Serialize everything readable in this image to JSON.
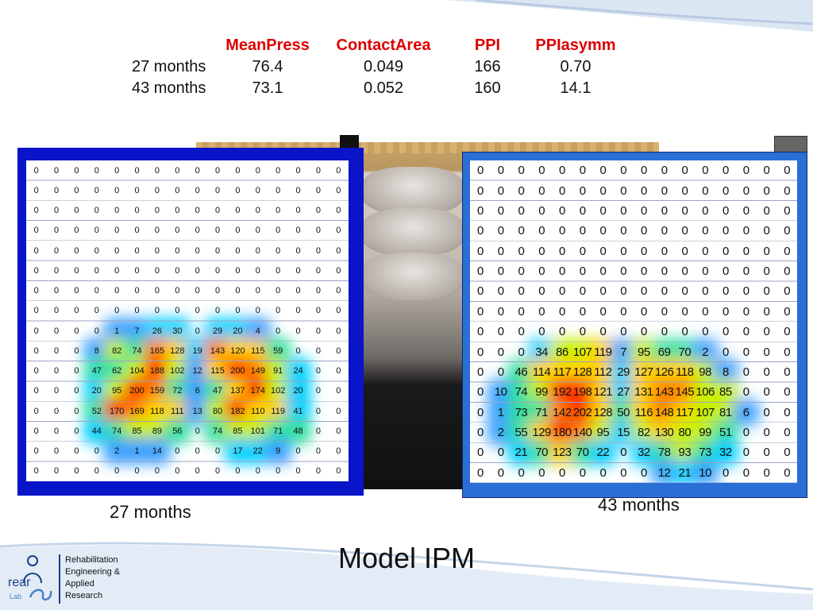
{
  "stats": {
    "headers": [
      "",
      "MeanPress",
      "ContactArea",
      "PPI",
      "PPIasymm"
    ],
    "rows": [
      [
        "27 months",
        "76.4",
        "0.049",
        "166",
        "0.70"
      ],
      [
        "43 months",
        "73.1",
        "0.052",
        "160",
        "14.1"
      ]
    ]
  },
  "maps": {
    "left": {
      "caption": "27 months",
      "rows": [
        [
          "0",
          "0",
          "0",
          "0",
          "0",
          "0",
          "0",
          "0",
          "0",
          "0",
          "0",
          "0",
          "0",
          "0",
          "0",
          "0"
        ],
        [
          "0",
          "0",
          "0",
          "0",
          "0",
          "0",
          "0",
          "0",
          "0",
          "0",
          "0",
          "0",
          "0",
          "0",
          "0",
          "0"
        ],
        [
          "0",
          "0",
          "0",
          "0",
          "0",
          "0",
          "0",
          "0",
          "0",
          "0",
          "0",
          "0",
          "0",
          "0",
          "0",
          "0"
        ],
        [
          "0",
          "0",
          "0",
          "0",
          "0",
          "0",
          "0",
          "0",
          "0",
          "0",
          "0",
          "0",
          "0",
          "0",
          "0",
          "0"
        ],
        [
          "0",
          "0",
          "0",
          "0",
          "0",
          "0",
          "0",
          "0",
          "0",
          "0",
          "0",
          "0",
          "0",
          "0",
          "0",
          "0"
        ],
        [
          "0",
          "0",
          "0",
          "0",
          "0",
          "0",
          "0",
          "0",
          "0",
          "0",
          "0",
          "0",
          "0",
          "0",
          "0",
          "0"
        ],
        [
          "0",
          "0",
          "0",
          "0",
          "0",
          "0",
          "0",
          "0",
          "0",
          "0",
          "0",
          "0",
          "0",
          "0",
          "0",
          "0"
        ],
        [
          "0",
          "0",
          "0",
          "0",
          "0",
          "0",
          "0",
          "0",
          "0",
          "0",
          "0",
          "0",
          "0",
          "0",
          "0",
          "0"
        ],
        [
          "0",
          "0",
          "0",
          "0",
          "1",
          "7",
          "26",
          "30",
          "0",
          "29",
          "20",
          "4",
          "0",
          "0",
          "0",
          "0"
        ],
        [
          "0",
          "0",
          "0",
          "8",
          "82",
          "74",
          "165",
          "128",
          "19",
          "143",
          "120",
          "115",
          "59",
          "0",
          "0",
          "0"
        ],
        [
          "0",
          "0",
          "0",
          "47",
          "62",
          "104",
          "188",
          "102",
          "12",
          "115",
          "200",
          "149",
          "91",
          "24",
          "0",
          "0"
        ],
        [
          "0",
          "0",
          "0",
          "20",
          "95",
          "200",
          "159",
          "72",
          "6",
          "47",
          "137",
          "174",
          "102",
          "20",
          "0",
          "0"
        ],
        [
          "0",
          "0",
          "0",
          "52",
          "170",
          "169",
          "118",
          "111",
          "13",
          "80",
          "182",
          "110",
          "119",
          "41",
          "0",
          "0"
        ],
        [
          "0",
          "0",
          "0",
          "44",
          "74",
          "85",
          "89",
          "56",
          "0",
          "74",
          "85",
          "101",
          "71",
          "48",
          "0",
          "0"
        ],
        [
          "0",
          "0",
          "0",
          "0",
          "2",
          "1",
          "14",
          "0",
          "0",
          "0",
          "17",
          "22",
          "9",
          "0",
          "0",
          "0"
        ],
        [
          "0",
          "0",
          "0",
          "0",
          "0",
          "0",
          "0",
          "0",
          "0",
          "0",
          "0",
          "0",
          "0",
          "0",
          "0",
          "0"
        ]
      ]
    },
    "right": {
      "caption": "43 months",
      "rows": [
        [
          "0",
          "0",
          "0",
          "0",
          "0",
          "0",
          "0",
          "0",
          "0",
          "0",
          "0",
          "0",
          "0",
          "0",
          "0",
          "0"
        ],
        [
          "0",
          "0",
          "0",
          "0",
          "0",
          "0",
          "0",
          "0",
          "0",
          "0",
          "0",
          "0",
          "0",
          "0",
          "0",
          "0"
        ],
        [
          "0",
          "0",
          "0",
          "0",
          "0",
          "0",
          "0",
          "0",
          "0",
          "0",
          "0",
          "0",
          "0",
          "0",
          "0",
          "0"
        ],
        [
          "0",
          "0",
          "0",
          "0",
          "0",
          "0",
          "0",
          "0",
          "0",
          "0",
          "0",
          "0",
          "0",
          "0",
          "0",
          "0"
        ],
        [
          "0",
          "0",
          "0",
          "0",
          "0",
          "0",
          "0",
          "0",
          "0",
          "0",
          "0",
          "0",
          "0",
          "0",
          "0",
          "0"
        ],
        [
          "0",
          "0",
          "0",
          "0",
          "0",
          "0",
          "0",
          "0",
          "0",
          "0",
          "0",
          "0",
          "0",
          "0",
          "0",
          "0"
        ],
        [
          "0",
          "0",
          "0",
          "0",
          "0",
          "0",
          "0",
          "0",
          "0",
          "0",
          "0",
          "0",
          "0",
          "0",
          "0",
          "0"
        ],
        [
          "0",
          "0",
          "0",
          "0",
          "0",
          "0",
          "0",
          "0",
          "0",
          "0",
          "0",
          "0",
          "0",
          "0",
          "0",
          "0"
        ],
        [
          "0",
          "0",
          "0",
          "0",
          "0",
          "0",
          "0",
          "0",
          "0",
          "0",
          "0",
          "0",
          "0",
          "0",
          "0",
          "0"
        ],
        [
          "0",
          "0",
          "0",
          "34",
          "86",
          "107",
          "119",
          "7",
          "95",
          "69",
          "70",
          "2",
          "0",
          "0",
          "0",
          "0"
        ],
        [
          "0",
          "0",
          "46",
          "114",
          "117",
          "128",
          "112",
          "29",
          "127",
          "126",
          "118",
          "98",
          "8",
          "0",
          "0",
          "0"
        ],
        [
          "0",
          "10",
          "74",
          "99",
          "192",
          "198",
          "121",
          "27",
          "131",
          "143",
          "145",
          "106",
          "85",
          "0",
          "0",
          "0"
        ],
        [
          "0",
          "1",
          "73",
          "71",
          "142",
          "202",
          "128",
          "50",
          "116",
          "148",
          "117",
          "107",
          "81",
          "6",
          "0",
          "0"
        ],
        [
          "0",
          "2",
          "55",
          "129",
          "180",
          "140",
          "95",
          "15",
          "82",
          "130",
          "80",
          "99",
          "51",
          "0",
          "0",
          "0"
        ],
        [
          "0",
          "0",
          "21",
          "70",
          "123",
          "70",
          "22",
          "0",
          "32",
          "78",
          "93",
          "73",
          "32",
          "0",
          "0",
          "0"
        ],
        [
          "0",
          "0",
          "0",
          "0",
          "0",
          "0",
          "0",
          "0",
          "0",
          "12",
          "21",
          "10",
          "0",
          "0",
          "0",
          "0"
        ]
      ]
    }
  },
  "slide": {
    "title": "Model IPM"
  },
  "logo": {
    "mark_text": "rear",
    "sub_text": "Lab",
    "lines": [
      "Rehabilitation",
      "Engineering &",
      "Applied",
      "Research"
    ]
  },
  "colors": {
    "left_frame": "#0a14c8",
    "right_frame": "#2a6fd6",
    "header_red": "#dd0000",
    "heat_scale": [
      "#3aa0ff",
      "#00d0ff",
      "#30e0a0",
      "#c8f000",
      "#ffd000",
      "#ff8000",
      "#ff1a00"
    ]
  }
}
